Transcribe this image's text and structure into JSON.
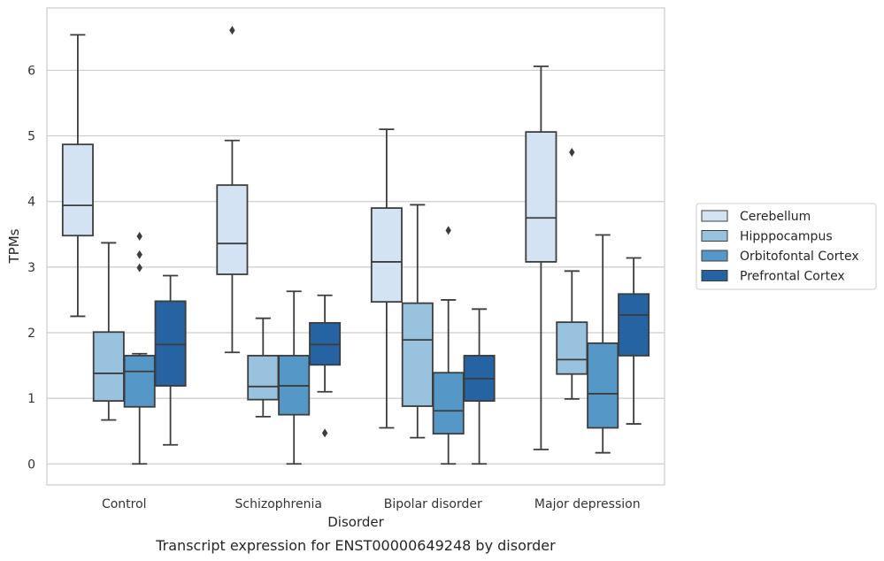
{
  "caption": "Transcript expression for ENST00000649248 by disorder",
  "chart_data": {
    "type": "box",
    "title": "",
    "xlabel": "Disorder",
    "ylabel": "TPMs",
    "ylim": [
      -0.32,
      6.95
    ],
    "yticks": [
      0,
      1,
      2,
      3,
      4,
      5,
      6
    ],
    "grid": "horizontal",
    "legend_position": "right",
    "categories": [
      "Control",
      "Schizophrenia",
      "Bipolar disorder",
      "Major depression"
    ],
    "series": [
      {
        "name": "Cerebellum",
        "color": "#d4e3f3",
        "boxes": [
          {
            "whisker_low": 2.25,
            "q1": 3.48,
            "median": 3.94,
            "q3": 4.87,
            "whisker_high": 6.54,
            "outliers": []
          },
          {
            "whisker_low": 1.7,
            "q1": 2.89,
            "median": 3.36,
            "q3": 4.25,
            "whisker_high": 4.93,
            "outliers": [
              6.61
            ]
          },
          {
            "whisker_low": 0.55,
            "q1": 2.47,
            "median": 3.08,
            "q3": 3.9,
            "whisker_high": 5.1,
            "outliers": []
          },
          {
            "whisker_low": 0.22,
            "q1": 3.08,
            "median": 3.75,
            "q3": 5.06,
            "whisker_high": 6.06,
            "outliers": []
          }
        ]
      },
      {
        "name": "Hipppocampus",
        "color": "#99c2df",
        "boxes": [
          {
            "whisker_low": 0.67,
            "q1": 0.96,
            "median": 1.38,
            "q3": 2.01,
            "whisker_high": 3.37,
            "outliers": []
          },
          {
            "whisker_low": 0.72,
            "q1": 0.98,
            "median": 1.18,
            "q3": 1.65,
            "whisker_high": 2.22,
            "outliers": []
          },
          {
            "whisker_low": 0.4,
            "q1": 0.88,
            "median": 1.89,
            "q3": 2.45,
            "whisker_high": 3.95,
            "outliers": []
          },
          {
            "whisker_low": 0.99,
            "q1": 1.37,
            "median": 1.59,
            "q3": 2.16,
            "whisker_high": 2.94,
            "outliers": [
              4.75
            ]
          }
        ]
      },
      {
        "name": "Orbitofontal Cortex",
        "color": "#5598c8",
        "boxes": [
          {
            "whisker_low": 0.0,
            "q1": 0.87,
            "median": 1.41,
            "q3": 1.65,
            "whisker_high": 1.68,
            "outliers": [
              2.99,
              3.19,
              3.47
            ]
          },
          {
            "whisker_low": 0.0,
            "q1": 0.75,
            "median": 1.19,
            "q3": 1.65,
            "whisker_high": 2.63,
            "outliers": []
          },
          {
            "whisker_low": 0.0,
            "q1": 0.46,
            "median": 0.81,
            "q3": 1.39,
            "whisker_high": 2.5,
            "outliers": [
              3.56
            ]
          },
          {
            "whisker_low": 0.17,
            "q1": 0.55,
            "median": 1.07,
            "q3": 1.84,
            "whisker_high": 3.49,
            "outliers": []
          }
        ]
      },
      {
        "name": "Prefrontal Cortex",
        "color": "#2563a3",
        "boxes": [
          {
            "whisker_low": 0.29,
            "q1": 1.19,
            "median": 1.82,
            "q3": 2.48,
            "whisker_high": 2.87,
            "outliers": []
          },
          {
            "whisker_low": 1.1,
            "q1": 1.51,
            "median": 1.82,
            "q3": 2.15,
            "whisker_high": 2.57,
            "outliers": [
              0.47
            ]
          },
          {
            "whisker_low": 0.0,
            "q1": 0.96,
            "median": 1.3,
            "q3": 1.65,
            "whisker_high": 2.36,
            "outliers": []
          },
          {
            "whisker_low": 0.61,
            "q1": 1.65,
            "median": 2.27,
            "q3": 2.59,
            "whisker_high": 3.14,
            "outliers": []
          }
        ]
      }
    ]
  }
}
